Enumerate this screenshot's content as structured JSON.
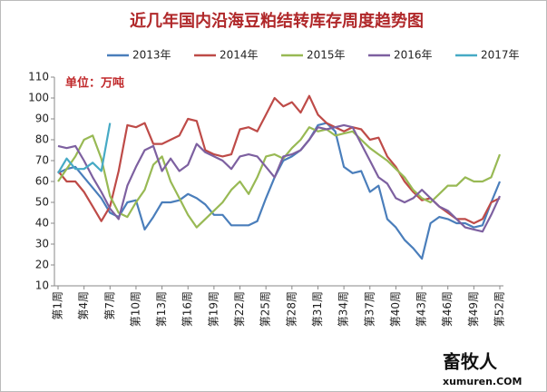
{
  "chart_data": {
    "type": "line",
    "title": "近几年国内沿海豆粕结转库存周度趋势图",
    "annotations": [
      "单位：万吨",
      "畜牧人",
      "xumuren.COM"
    ],
    "categories": [
      "第1周",
      null,
      null,
      "第4周",
      null,
      null,
      "第7周",
      null,
      null,
      "第10周",
      null,
      null,
      "第13周",
      null,
      null,
      "第16周",
      null,
      null,
      "第19周",
      null,
      null,
      "第22周",
      null,
      null,
      "第25周",
      null,
      null,
      "第28周",
      null,
      null,
      "第31周",
      null,
      null,
      "第34周",
      null,
      null,
      "第37周",
      null,
      null,
      "第40周",
      null,
      null,
      "第43周",
      null,
      null,
      "第46周",
      null,
      null,
      "第49周",
      null,
      null,
      "第52周"
    ],
    "series": [
      {
        "name": "2013年",
        "color": "#4a7ebb",
        "values": [
          64,
          66,
          67,
          62,
          57,
          52,
          45,
          43,
          50,
          51,
          37,
          43,
          50,
          50,
          51,
          54,
          52,
          49,
          44,
          44,
          39,
          39,
          39,
          41,
          52,
          62,
          70,
          72,
          75,
          80,
          87,
          88,
          84,
          67,
          64,
          65,
          55,
          58,
          42,
          38,
          32,
          28,
          23,
          40,
          43,
          42,
          40,
          40,
          38,
          39,
          50,
          60
        ]
      },
      {
        "name": "2014年",
        "color": "#be4b48",
        "values": [
          65,
          60,
          60,
          55,
          48,
          41,
          48,
          65,
          87,
          86,
          88,
          78,
          78,
          80,
          82,
          90,
          89,
          75,
          73,
          72,
          73,
          85,
          86,
          84,
          92,
          100,
          96,
          98,
          93,
          101,
          92,
          88,
          86,
          84,
          86,
          85,
          80,
          81,
          72,
          67,
          60,
          55,
          51,
          52,
          48,
          45,
          42,
          42,
          40,
          42,
          50,
          52
        ]
      },
      {
        "name": "2015年",
        "color": "#98b954",
        "values": [
          60,
          66,
          72,
          80,
          82,
          71,
          53,
          45,
          43,
          50,
          56,
          68,
          72,
          60,
          52,
          44,
          38,
          42,
          46,
          50,
          56,
          60,
          54,
          62,
          72,
          73,
          71,
          76,
          80,
          86,
          84,
          85,
          82,
          83,
          84,
          80,
          76,
          73,
          70,
          66,
          62,
          56,
          52,
          50,
          54,
          58,
          58,
          62,
          60,
          60,
          62,
          73
        ]
      },
      {
        "name": "2016年",
        "color": "#7d60a0",
        "values": [
          77,
          76,
          77,
          70,
          62,
          55,
          47,
          42,
          58,
          67,
          75,
          77,
          65,
          71,
          65,
          68,
          78,
          74,
          72,
          70,
          66,
          72,
          73,
          72,
          67,
          62,
          72,
          73,
          75,
          80,
          86,
          85,
          86,
          87,
          86,
          78,
          70,
          62,
          59,
          52,
          50,
          52,
          56,
          52,
          48,
          46,
          42,
          38,
          37,
          36,
          44,
          53
        ]
      },
      {
        "name": "2017年",
        "color": "#46aac5",
        "values": [
          64,
          71,
          66,
          66,
          69,
          65,
          88,
          null,
          null,
          null,
          null,
          null,
          null,
          null,
          null,
          null,
          null,
          null,
          null,
          null,
          null,
          null,
          null,
          null,
          null,
          null,
          null,
          null,
          null,
          null,
          null,
          null,
          null,
          null,
          null,
          null,
          null,
          null,
          null,
          null,
          null,
          null,
          null,
          null,
          null,
          null,
          null,
          null,
          null,
          null,
          null,
          null
        ]
      }
    ],
    "ylim": [
      10,
      110
    ],
    "yticks": [
      10,
      20,
      30,
      40,
      50,
      60,
      70,
      80,
      90,
      100,
      110
    ],
    "grid": false
  }
}
